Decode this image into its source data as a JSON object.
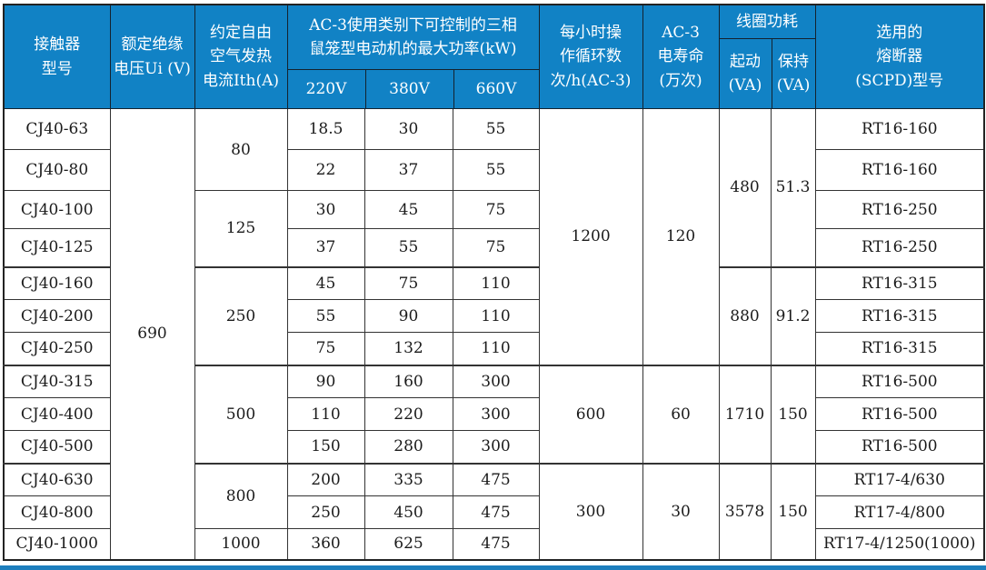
{
  "colors": {
    "header_bg": "#1182c5",
    "header_text": "#ffffff",
    "table_border": "#333333",
    "bottom_strip": "#1e7fbe"
  },
  "table": {
    "header": {
      "model": "接触器\n型号",
      "rated_voltage": "额定绝缘\n电压Ui (V)",
      "thermal_current": "约定自由\n空气发热\n电流Ith(A)",
      "power_group": "AC-3使用类别下可控制的三相\n鼠笼型电动机的最大功率(kW)",
      "v220": "220V",
      "v380": "380V",
      "v660": "660V",
      "cycles": "每小时操\n作循环数\n次/h(AC-3)",
      "life": "AC-3\n电寿命\n(万次)",
      "coil_group": "线圈功耗",
      "pickup": "起动\n(VA)",
      "hold": "保持\n(VA)",
      "fuse": "选用的\n熔断器\n(SCPD)型号"
    },
    "rows": [
      {
        "cells": [
          {
            "t": "CJ40-63"
          },
          {
            "t": "690",
            "rs": 13
          },
          {
            "t": "80",
            "rs": 2
          },
          {
            "t": "18.5"
          },
          {
            "t": "30"
          },
          {
            "t": "55"
          },
          {
            "t": "1200",
            "rs": 7
          },
          {
            "t": "120",
            "rs": 7
          },
          {
            "t": "480",
            "rs": 4
          },
          {
            "t": "51.3",
            "rs": 4
          },
          {
            "t": "RT16-160"
          }
        ]
      },
      {
        "cells": [
          {
            "t": "CJ40-80"
          },
          {
            "t": "22"
          },
          {
            "t": "37"
          },
          {
            "t": "55"
          },
          {
            "t": "RT16-160"
          }
        ]
      },
      {
        "cells": [
          {
            "t": "CJ40-100"
          },
          {
            "t": "125",
            "rs": 2
          },
          {
            "t": "30"
          },
          {
            "t": "45"
          },
          {
            "t": "75"
          },
          {
            "t": "RT16-250"
          }
        ]
      },
      {
        "cells": [
          {
            "t": "CJ40-125"
          },
          {
            "t": "37"
          },
          {
            "t": "55"
          },
          {
            "t": "75"
          },
          {
            "t": "RT16-250"
          }
        ]
      },
      {
        "group_break": true,
        "cells": [
          {
            "t": "CJ40-160"
          },
          {
            "t": "250",
            "rs": 3
          },
          {
            "t": "45"
          },
          {
            "t": "75"
          },
          {
            "t": "110"
          },
          {
            "t": "880",
            "rs": 3
          },
          {
            "t": "91.2",
            "rs": 3
          },
          {
            "t": "RT16-315"
          }
        ]
      },
      {
        "cells": [
          {
            "t": "CJ40-200"
          },
          {
            "t": "55"
          },
          {
            "t": "90"
          },
          {
            "t": "110"
          },
          {
            "t": "RT16-315"
          }
        ]
      },
      {
        "cells": [
          {
            "t": "CJ40-250"
          },
          {
            "t": "75"
          },
          {
            "t": "132"
          },
          {
            "t": "110"
          },
          {
            "t": "RT16-315"
          }
        ]
      },
      {
        "group_break": true,
        "cells": [
          {
            "t": "CJ40-315"
          },
          {
            "t": "500",
            "rs": 3
          },
          {
            "t": "90"
          },
          {
            "t": "160"
          },
          {
            "t": "300"
          },
          {
            "t": "600",
            "rs": 3
          },
          {
            "t": "60",
            "rs": 3
          },
          {
            "t": "1710",
            "rs": 3
          },
          {
            "t": "150",
            "rs": 3
          },
          {
            "t": "RT16-500"
          }
        ]
      },
      {
        "cells": [
          {
            "t": "CJ40-400"
          },
          {
            "t": "110"
          },
          {
            "t": "220"
          },
          {
            "t": "300"
          },
          {
            "t": "RT16-500"
          }
        ]
      },
      {
        "cells": [
          {
            "t": "CJ40-500"
          },
          {
            "t": "150"
          },
          {
            "t": "280"
          },
          {
            "t": "300"
          },
          {
            "t": "RT16-500"
          }
        ]
      },
      {
        "group_break": true,
        "cells": [
          {
            "t": "CJ40-630"
          },
          {
            "t": "800",
            "rs": 2
          },
          {
            "t": "200"
          },
          {
            "t": "335"
          },
          {
            "t": "475"
          },
          {
            "t": "300",
            "rs": 3
          },
          {
            "t": "30",
            "rs": 3
          },
          {
            "t": "3578",
            "rs": 3
          },
          {
            "t": "150",
            "rs": 3
          },
          {
            "t": "RT17-4/630"
          }
        ]
      },
      {
        "cells": [
          {
            "t": "CJ40-800"
          },
          {
            "t": "250"
          },
          {
            "t": "450"
          },
          {
            "t": "475"
          },
          {
            "t": "RT17-4/800"
          }
        ]
      },
      {
        "cells": [
          {
            "t": "CJ40-1000"
          },
          {
            "t": "1000"
          },
          {
            "t": "360"
          },
          {
            "t": "625"
          },
          {
            "t": "475"
          },
          {
            "t": "RT17-4/1250(1000)"
          }
        ]
      }
    ]
  }
}
